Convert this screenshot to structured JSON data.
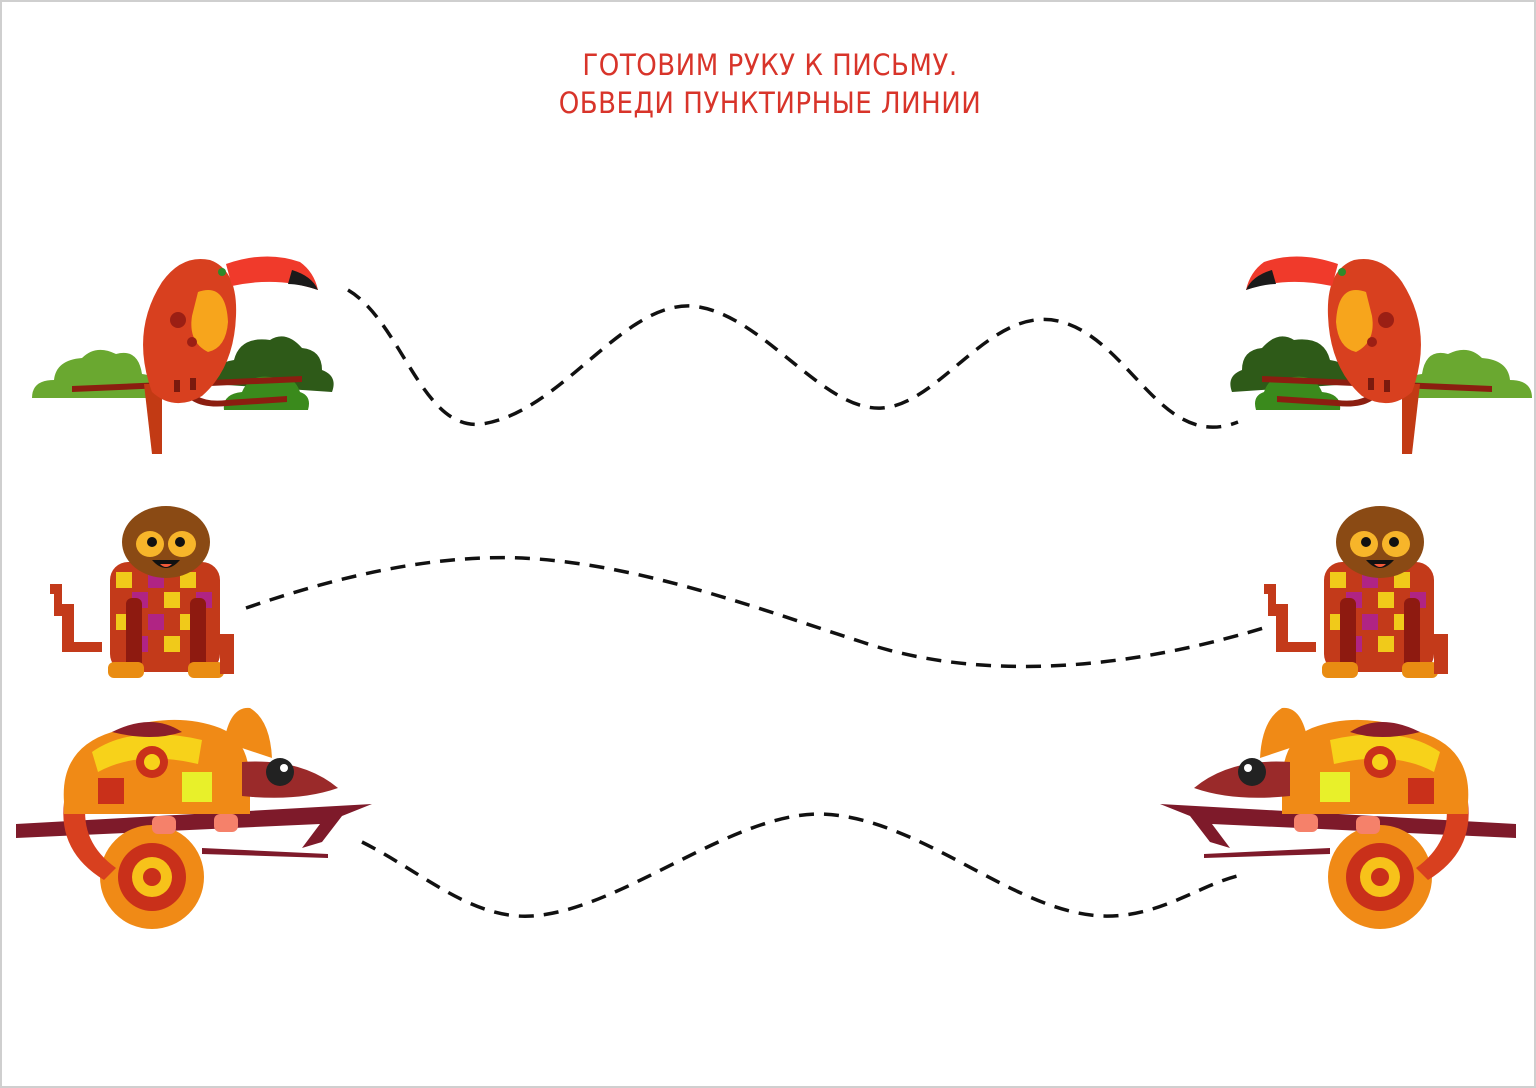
{
  "worksheet": {
    "title_line_1": "ГОТОВИМ РУКУ К ПИСЬМУ.",
    "title_line_2": "ОБВЕДИ ПУНКТИРНЫЕ ЛИНИИ"
  },
  "rows": [
    {
      "animal": "toucan",
      "icon_left": "toucan-icon",
      "icon_right": "toucan-icon"
    },
    {
      "animal": "monkey",
      "icon_left": "monkey-icon",
      "icon_right": "monkey-icon"
    },
    {
      "animal": "chameleon",
      "icon_left": "chameleon-icon",
      "icon_right": "chameleon-icon"
    }
  ],
  "colors": {
    "title": "#d8342a",
    "dash": "#111111",
    "toucan_body": "#d8401f",
    "toucan_beak": "#f03a2b",
    "bush_light": "#6aa830",
    "bush_dark": "#2e5a18",
    "monkey_face": "#8a4a14",
    "chameleon_orange": "#f08a16",
    "chameleon_dark": "#8b1e2a"
  }
}
